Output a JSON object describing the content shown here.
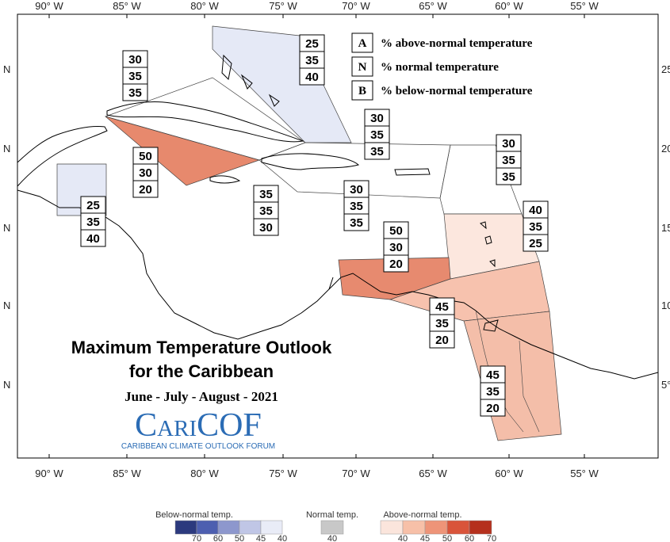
{
  "map": {
    "top_longitude_labels": [
      "90° W",
      "85° W",
      "80° W",
      "75° W",
      "70° W",
      "65° W",
      "60° W",
      "55° W"
    ],
    "bottom_longitude_labels": [
      "90° W",
      "85° W",
      "80° W",
      "75° W",
      "70° W",
      "65° W",
      "60° W",
      "55° W"
    ],
    "left_latitude_labels": [
      "N",
      "N",
      "N",
      "N",
      "N"
    ],
    "right_latitude_labels": [
      "25",
      "20",
      "15",
      "10",
      "5°"
    ]
  },
  "key": [
    {
      "letter": "A",
      "text": "% above-normal temperature"
    },
    {
      "letter": "N",
      "text": "% normal temperature"
    },
    {
      "letter": "B",
      "text": "% below-normal temperature"
    }
  ],
  "regions": [
    {
      "values": [
        25,
        35,
        40
      ]
    },
    {
      "values": [
        30,
        35,
        35
      ]
    },
    {
      "values": [
        50,
        30,
        20
      ]
    },
    {
      "values": [
        25,
        35,
        40
      ]
    },
    {
      "values": [
        30,
        35,
        35
      ]
    },
    {
      "values": [
        35,
        35,
        30
      ]
    },
    {
      "values": [
        30,
        35,
        35
      ]
    },
    {
      "values": [
        30,
        35,
        35
      ]
    },
    {
      "values": [
        40,
        35,
        25
      ]
    },
    {
      "values": [
        50,
        30,
        20
      ]
    },
    {
      "values": [
        45,
        35,
        20
      ]
    },
    {
      "values": [
        45,
        35,
        20
      ]
    }
  ],
  "title": {
    "line1": "Maximum Temperature Outlook",
    "line2": "for the Caribbean",
    "period": "June - July - August - 2021"
  },
  "logo": {
    "name": "CariCOF",
    "tagline": "CARIBBEAN CLIMATE OUTLOOK FORUM"
  },
  "color_scale": {
    "below": {
      "label": "Below-normal temp.",
      "ticks": [
        70,
        60,
        50,
        45,
        40
      ]
    },
    "normal": {
      "label": "Normal temp.",
      "ticks": [
        40
      ]
    },
    "above": {
      "label": "Above-normal temp.",
      "ticks": [
        40,
        45,
        50,
        60,
        70
      ]
    }
  }
}
